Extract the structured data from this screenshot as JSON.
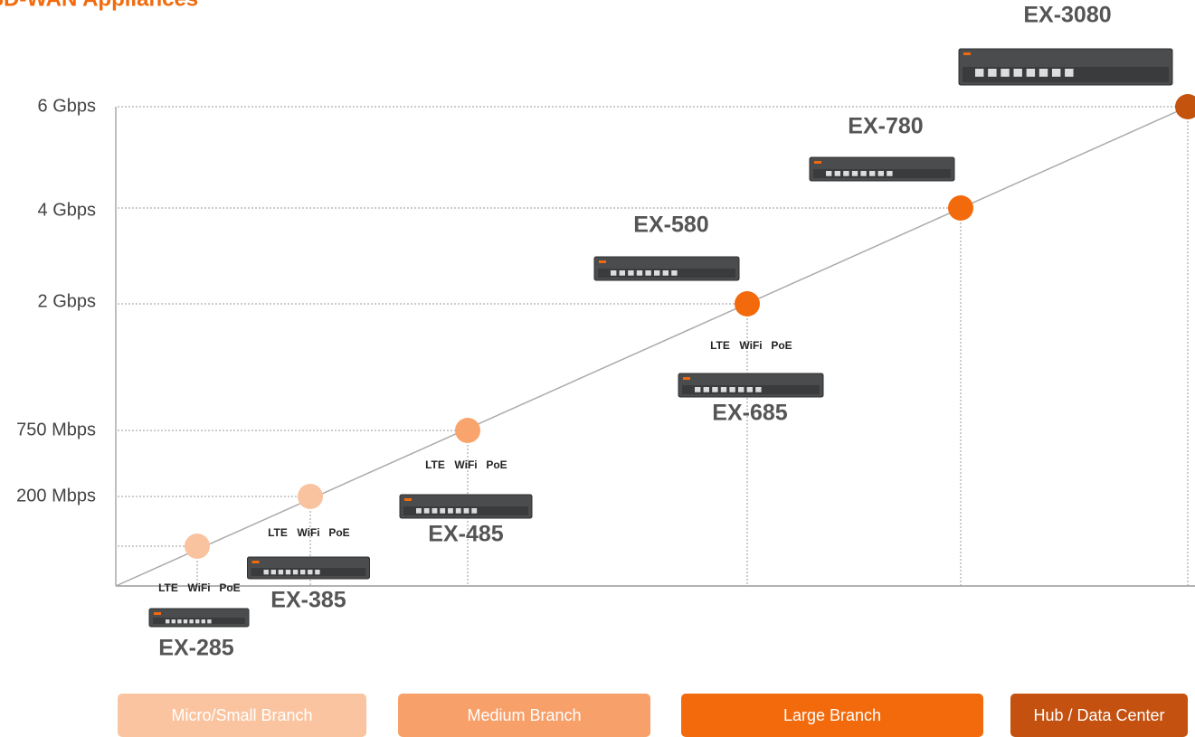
{
  "title": "SD-WAN Appliances",
  "y_labels": [
    "6 Gbps",
    "4 Gbps",
    "2 Gbps",
    "750 Mbps",
    "200 Mbps"
  ],
  "models": [
    {
      "name": "EX-285",
      "features": [
        "LTE",
        "WiFi",
        "PoE"
      ]
    },
    {
      "name": "EX-385",
      "features": [
        "LTE",
        "WiFi",
        "PoE"
      ]
    },
    {
      "name": "EX-485",
      "features": [
        "LTE",
        "WiFi",
        "PoE"
      ]
    },
    {
      "name": "EX-580"
    },
    {
      "name": "EX-685",
      "features": [
        "LTE",
        "WiFi",
        "PoE"
      ]
    },
    {
      "name": "EX-780"
    },
    {
      "name": "EX-3080"
    }
  ],
  "segments": [
    "Micro/Small Branch",
    "Medium Branch",
    "Large Branch",
    "Hub / Data Center"
  ]
}
